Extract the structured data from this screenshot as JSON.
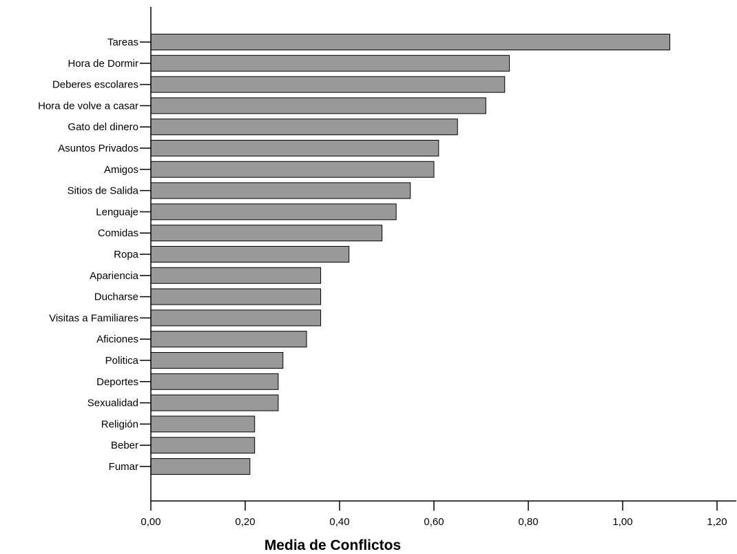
{
  "chart_data": {
    "type": "bar",
    "orientation": "horizontal",
    "categories": [
      "Tareas",
      "Hora de Dormir",
      "Deberes escolares",
      "Hora de volve a casar",
      "Gato del dinero",
      "Asuntos Privados",
      "Amigos",
      "Sitios de Salida",
      "Lenguaje",
      "Comidas",
      "Ropa",
      "Apariencia",
      "Ducharse",
      "Visitas a Familiares",
      "Aficiones",
      "Politica",
      "Deportes",
      "Sexualidad",
      "Religión",
      "Beber",
      "Fumar"
    ],
    "values": [
      1.1,
      0.76,
      0.75,
      0.71,
      0.65,
      0.61,
      0.6,
      0.55,
      0.52,
      0.49,
      0.42,
      0.36,
      0.36,
      0.36,
      0.33,
      0.28,
      0.27,
      0.27,
      0.22,
      0.22,
      0.21
    ],
    "xlabel": "Media de Conflictos",
    "ylabel": "",
    "xlim": [
      0,
      1.25
    ],
    "xticks": [
      0.0,
      0.2,
      0.4,
      0.6,
      0.8,
      1.0,
      1.2
    ],
    "xtick_labels": [
      "0,00",
      "0,20",
      "0,40",
      "0,60",
      "0,80",
      "1,00",
      "1,20"
    ],
    "grid": false,
    "legend": "none",
    "bar_color": "#999999",
    "bar_edge_color": "#000000"
  }
}
